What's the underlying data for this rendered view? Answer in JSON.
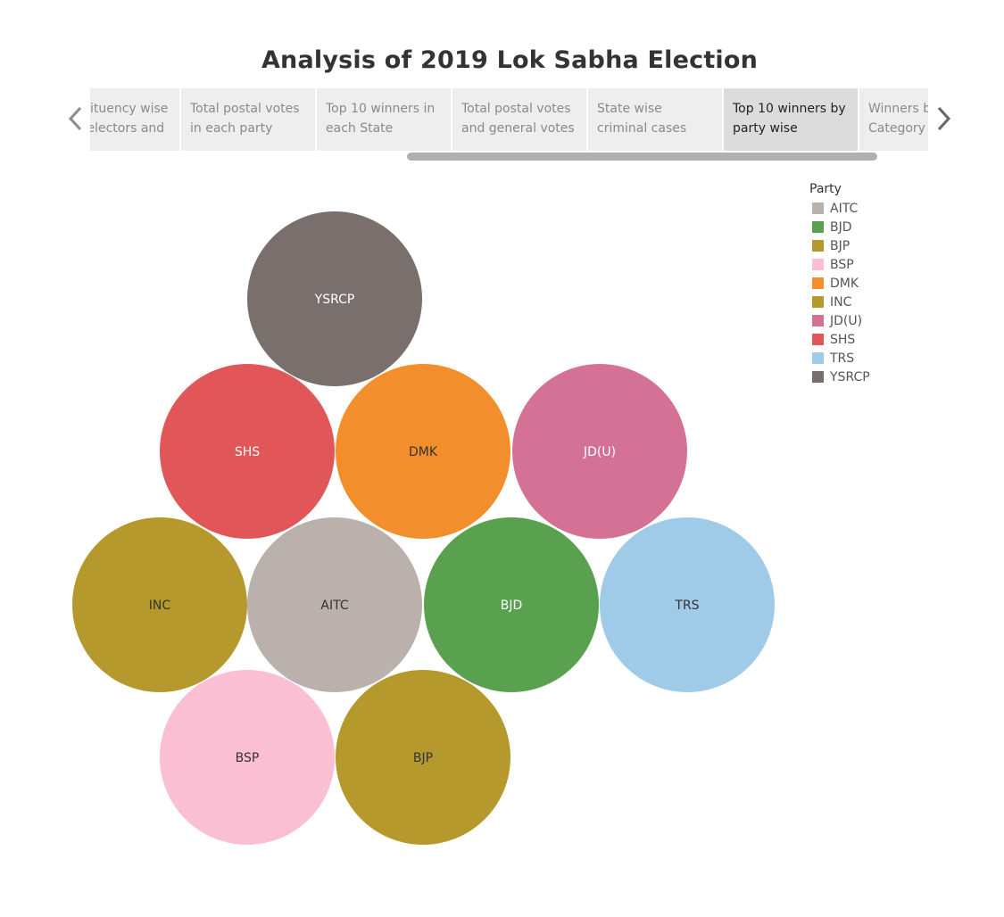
{
  "page": {
    "title": "Analysis of 2019 Lok Sabha Election"
  },
  "tabs": [
    {
      "lines": [
        "Constituency wise",
        "total electors and"
      ],
      "active": false
    },
    {
      "lines": [
        "Total postal votes",
        "in each party"
      ],
      "active": false
    },
    {
      "lines": [
        "Top 10 winners in",
        "each State"
      ],
      "active": false
    },
    {
      "lines": [
        "Total postal votes",
        "and general votes"
      ],
      "active": false
    },
    {
      "lines": [
        "State wise",
        "criminal cases"
      ],
      "active": false
    },
    {
      "lines": [
        "Top 10 winners by",
        "party wise"
      ],
      "active": true
    },
    {
      "lines": [
        "Winners by",
        "Category"
      ],
      "active": false
    }
  ],
  "legend": {
    "title": "Party",
    "items": [
      {
        "label": "AITC",
        "color": "#bab0ac"
      },
      {
        "label": "BJD",
        "color": "#59a14f"
      },
      {
        "label": "BJP",
        "color": "#b6992d"
      },
      {
        "label": "BSP",
        "color": "#fabfd2"
      },
      {
        "label": "DMK",
        "color": "#f28e2b"
      },
      {
        "label": "INC",
        "color": "#b6992d"
      },
      {
        "label": "JD(U)",
        "color": "#d37295"
      },
      {
        "label": "SHS",
        "color": "#e15759"
      },
      {
        "label": "TRS",
        "color": "#a0cbe8"
      },
      {
        "label": "YSRCP",
        "color": "#79706e"
      }
    ]
  },
  "chart_data": {
    "type": "packed-bubble",
    "title": "",
    "series": [
      {
        "label": "YSRCP",
        "color": "#79706e",
        "text_color": "#ffffff"
      },
      {
        "label": "SHS",
        "color": "#e15759",
        "text_color": "#ffffff"
      },
      {
        "label": "DMK",
        "color": "#f28e2b",
        "text_color": "#333333"
      },
      {
        "label": "JD(U)",
        "color": "#d37295",
        "text_color": "#ffffff"
      },
      {
        "label": "INC",
        "color": "#b6992d",
        "text_color": "#333333"
      },
      {
        "label": "AITC",
        "color": "#bab0ac",
        "text_color": "#333333"
      },
      {
        "label": "BJD",
        "color": "#59a14f",
        "text_color": "#ffffff"
      },
      {
        "label": "TRS",
        "color": "#a0cbe8",
        "text_color": "#333333"
      },
      {
        "label": "BSP",
        "color": "#fabfd2",
        "text_color": "#333333"
      },
      {
        "label": "BJP",
        "color": "#b6992d",
        "text_color": "#333333"
      }
    ]
  }
}
